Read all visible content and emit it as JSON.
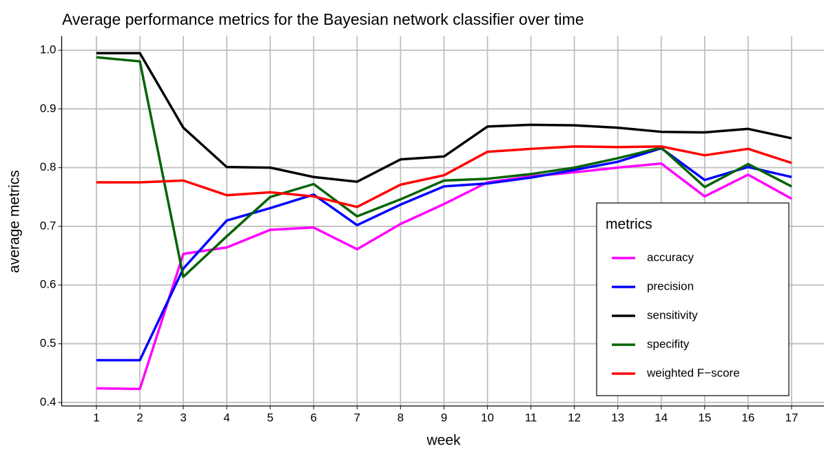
{
  "chart_data": {
    "type": "line",
    "title": "Average performance metrics for the Bayesian network classifier  over time",
    "x_label": "week",
    "y_label": "average metrics",
    "x": [
      1,
      2,
      3,
      4,
      5,
      6,
      7,
      8,
      9,
      10,
      11,
      12,
      13,
      14,
      15,
      16,
      17
    ],
    "series": [
      {
        "name": "accuracy",
        "color": "#ff00ff",
        "values": [
          0.424,
          0.423,
          0.653,
          0.664,
          0.694,
          0.698,
          0.661,
          0.704,
          0.738,
          0.775,
          0.785,
          0.792,
          0.8,
          0.807,
          0.751,
          0.788,
          0.747
        ]
      },
      {
        "name": "precision",
        "color": "#0000ff",
        "values": [
          0.472,
          0.472,
          0.628,
          0.71,
          0.731,
          0.754,
          0.702,
          0.737,
          0.768,
          0.773,
          0.783,
          0.796,
          0.81,
          0.833,
          0.779,
          0.801,
          0.784
        ]
      },
      {
        "name": "sensitivity",
        "color": "#000000",
        "values": [
          0.995,
          0.995,
          0.868,
          0.801,
          0.8,
          0.784,
          0.776,
          0.814,
          0.819,
          0.87,
          0.873,
          0.872,
          0.868,
          0.861,
          0.86,
          0.866,
          0.85
        ]
      },
      {
        "name": "specifity",
        "color": "#006400",
        "values": [
          0.988,
          0.981,
          0.614,
          0.683,
          0.75,
          0.772,
          0.717,
          0.746,
          0.778,
          0.781,
          0.789,
          0.8,
          0.816,
          0.834,
          0.767,
          0.806,
          0.768
        ]
      },
      {
        "name": "weighted F−score",
        "color": "#ff0000",
        "values": [
          0.775,
          0.775,
          0.778,
          0.753,
          0.758,
          0.751,
          0.733,
          0.771,
          0.787,
          0.827,
          0.832,
          0.836,
          0.835,
          0.836,
          0.821,
          0.832,
          0.808
        ]
      }
    ],
    "legend_title": "metrics",
    "xlim": [
      0.2,
      17.8
    ],
    "xticks": [
      1,
      2,
      3,
      4,
      5,
      6,
      7,
      8,
      9,
      10,
      11,
      12,
      13,
      14,
      15,
      16,
      17
    ],
    "ylim": [
      0.394,
      1.024
    ],
    "yticks": [
      0.4,
      0.5,
      0.6,
      0.7,
      0.8,
      0.9,
      {
        "value": 1,
        "label": "1.0"
      }
    ],
    "grid": true,
    "legend_position": "bottom-right"
  }
}
